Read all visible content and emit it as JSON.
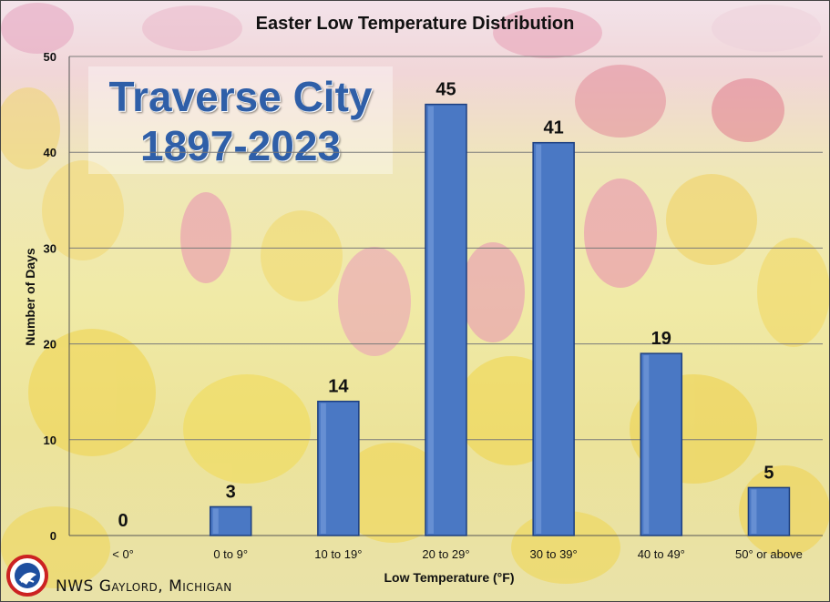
{
  "chart_data": {
    "type": "bar",
    "title": "Easter Low Temperature Distribution",
    "station_name": "Traverse City",
    "period": "1897-2023",
    "xlabel": "Low Temperature (°F)",
    "ylabel": "Number of Days",
    "categories": [
      "< 0°",
      "0 to 9°",
      "10 to 19°",
      "20 to 29°",
      "30 to 39°",
      "40 to 49°",
      "50° or above"
    ],
    "values": [
      0,
      3,
      14,
      45,
      41,
      19,
      5
    ],
    "ylim": [
      0,
      50
    ],
    "yticks": [
      0,
      10,
      20,
      30,
      40,
      50
    ],
    "grid": true,
    "legend": "none",
    "bar_color": "#4a78c4",
    "bar_edge_color": "#1d3f80"
  },
  "footer": {
    "credit": "NWS Gaylord, Michigan"
  },
  "logo": {
    "icon": "nws-logo-icon"
  }
}
